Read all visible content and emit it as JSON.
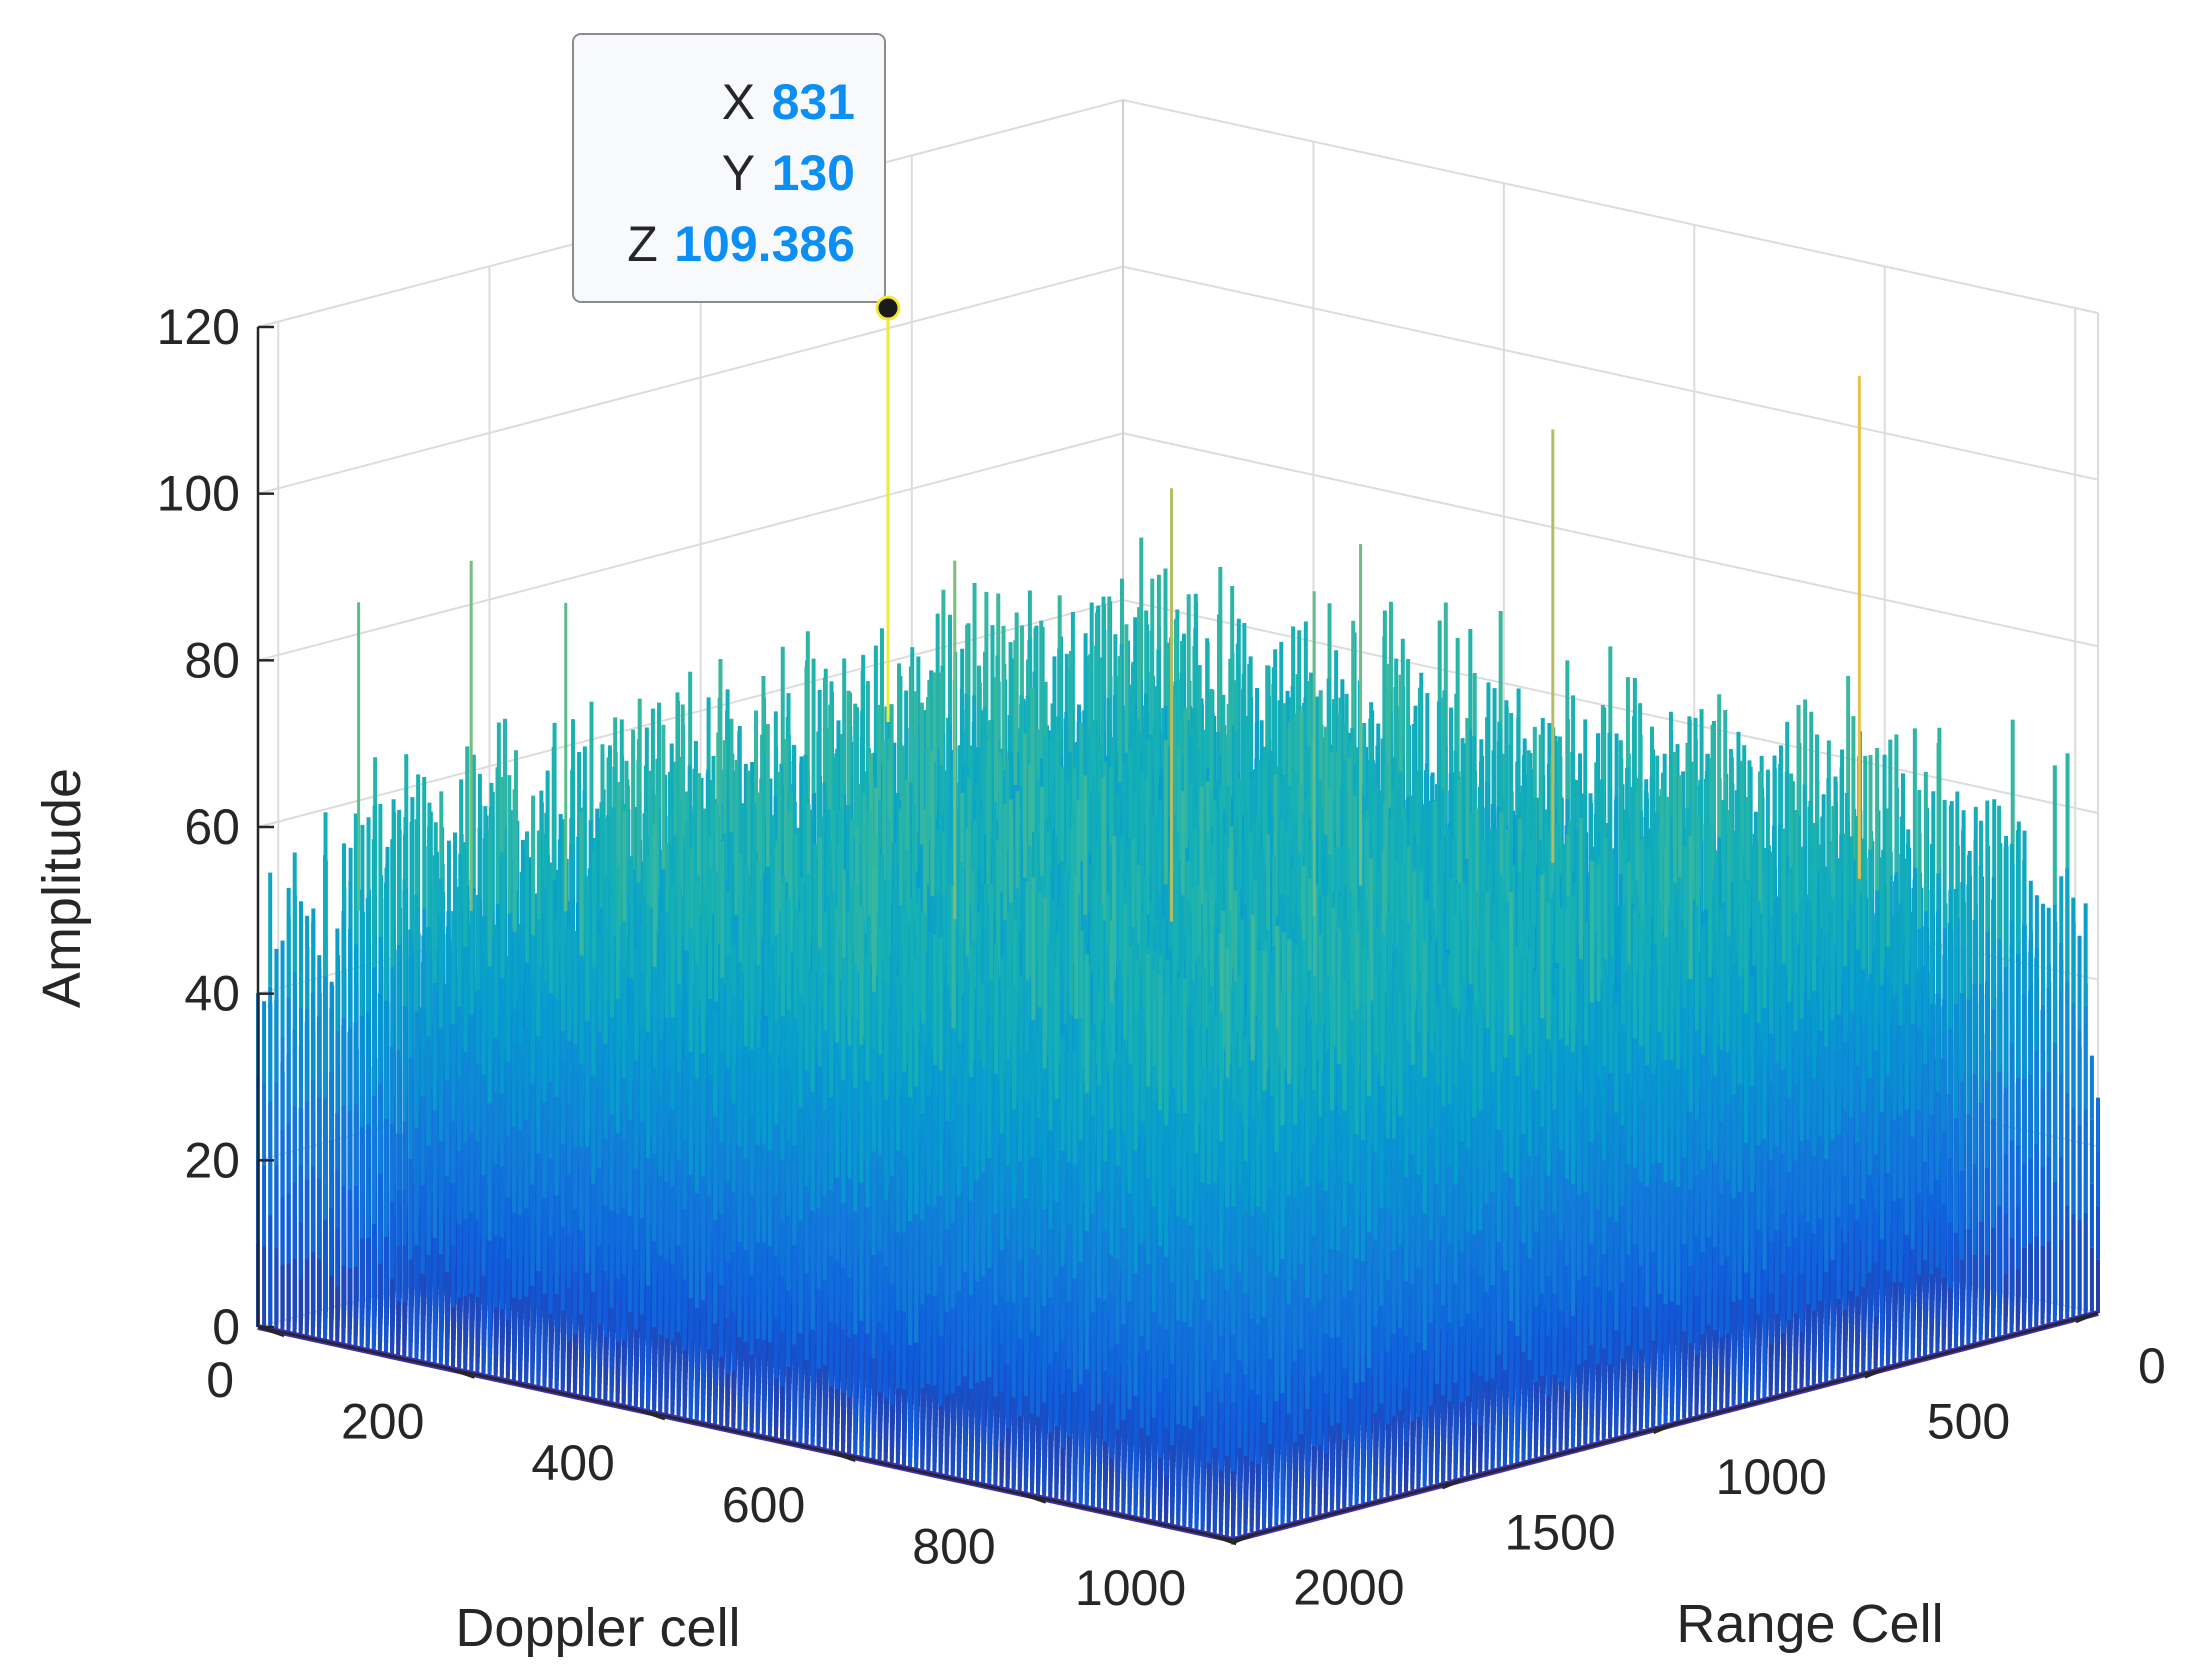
{
  "chart_data": {
    "type": "surface-3d",
    "title": "",
    "xlabel": "Doppler cell",
    "ylabel": "Range Cell",
    "zlabel": "Amplitude",
    "xlim": [
      0,
      1024
    ],
    "ylim": [
      0,
      2048
    ],
    "zlim": [
      0,
      120
    ],
    "x_ticks": [
      "0",
      "200",
      "400",
      "600",
      "800",
      "1000"
    ],
    "y_ticks": [
      "0",
      "500",
      "1000",
      "1500",
      "2000"
    ],
    "z_ticks": [
      "0",
      "20",
      "40",
      "60",
      "80",
      "100",
      "120"
    ],
    "grid": true,
    "colormap": "parula",
    "noise_floor_typical_range": [
      0,
      70
    ],
    "spikes": [
      {
        "x": 40,
        "y": 1900,
        "z": 86
      },
      {
        "x": 105,
        "y": 1780,
        "z": 91
      },
      {
        "x": 160,
        "y": 1680,
        "z": 86
      },
      {
        "x": 400,
        "y": 1300,
        "z": 92
      },
      {
        "x": 530,
        "y": 1080,
        "z": 101
      },
      {
        "x": 600,
        "y": 900,
        "z": 88
      },
      {
        "x": 831,
        "y": 130,
        "z": 109.386
      },
      {
        "x": 620,
        "y": 380,
        "z": 101
      },
      {
        "x": 560,
        "y": 700,
        "z": 90
      }
    ],
    "datatip": {
      "x_label": "X",
      "x_value": "831",
      "y_label": "Y",
      "y_value": "130",
      "z_label": "Z",
      "z_value": "109.386"
    }
  }
}
